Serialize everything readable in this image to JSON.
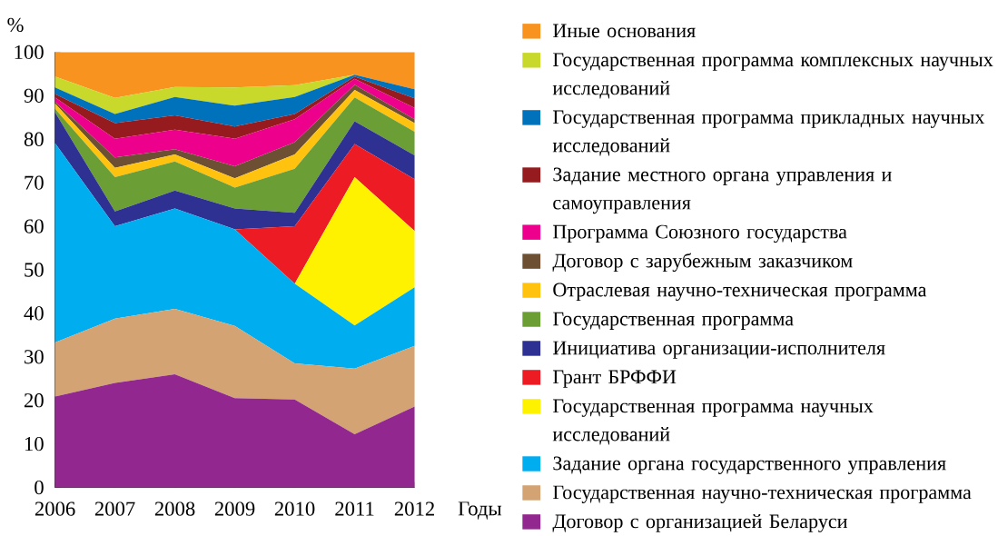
{
  "chart_data": {
    "type": "area",
    "stacked": true,
    "ylabel": "%",
    "xlabel": "Годы",
    "x": [
      2006,
      2007,
      2008,
      2009,
      2010,
      2011,
      2012
    ],
    "xlim": [
      2006,
      2012
    ],
    "xticks": [
      2006,
      2007,
      2008,
      2009,
      2010,
      2011,
      2012
    ],
    "ylim": [
      0,
      100
    ],
    "yticks": [
      0,
      10,
      20,
      30,
      40,
      50,
      60,
      70,
      80,
      90,
      100
    ],
    "legend": "right",
    "grid": false,
    "series": [
      {
        "name": "Договор с организацией Беларуси",
        "color": "#92278f",
        "values": [
          20.9,
          24.0,
          26.0,
          20.5,
          20.2,
          12.2,
          18.6
        ]
      },
      {
        "name": "Государственная научно-техническая программа",
        "color": "#d4a373",
        "values": [
          12.4,
          14.8,
          15.0,
          16.6,
          8.3,
          15.1,
          13.9
        ]
      },
      {
        "name": "Задание органа государственного управления",
        "color": "#00aeef",
        "values": [
          45.8,
          21.2,
          23.1,
          22.2,
          18.3,
          9.9,
          13.5
        ]
      },
      {
        "name": "Государственная программа научных исследований",
        "color": "#fff200",
        "values": [
          0,
          0,
          0,
          0,
          0,
          34.1,
          12.9
        ]
      },
      {
        "name": "Грант БРФФИ",
        "color": "#ed1c24",
        "values": [
          0,
          0,
          0,
          0,
          13.2,
          7.6,
          11.9
        ]
      },
      {
        "name": "Инициатива организации-исполнителя",
        "color": "#2e3192",
        "values": [
          7.1,
          3.4,
          4.1,
          4.8,
          3.1,
          5.2,
          5.5
        ]
      },
      {
        "name": "Государственная программа",
        "color": "#6b9e35",
        "values": [
          0.8,
          7.9,
          6.7,
          4.8,
          10.1,
          5.5,
          5.4
        ]
      },
      {
        "name": "Отраслевая научно-техническая программа",
        "color": "#ffc20e",
        "values": [
          1.2,
          2.1,
          1.6,
          2.1,
          3.3,
          1.7,
          2.0
        ]
      },
      {
        "name": "Договор с зарубежным заказчиком",
        "color": "#6d5033",
        "values": [
          0.4,
          2.4,
          1.2,
          2.8,
          2.8,
          1.2,
          0.9
        ]
      },
      {
        "name": "Программа Союзного государства",
        "color": "#ec008c",
        "values": [
          1.0,
          4.3,
          4.5,
          6.3,
          5.3,
          1.4,
          2.6
        ]
      },
      {
        "name": "Задание местного органа управления и самоуправления",
        "color": "#961b1e",
        "values": [
          0.8,
          3.6,
          3.3,
          2.8,
          1.2,
          0.5,
          2.2
        ]
      },
      {
        "name": "Государственная программа прикладных научных исследований",
        "color": "#0072bc",
        "values": [
          1.5,
          2.1,
          4.2,
          4.8,
          3.9,
          0.4,
          2.1
        ]
      },
      {
        "name": "Государственная программа комплексных научных исследований",
        "color": "#c8d92b",
        "values": [
          2.5,
          3.7,
          2.3,
          4.2,
          2.7,
          0,
          0
        ]
      },
      {
        "name": "Иные основания",
        "color": "#f7931e",
        "values": [
          5.6,
          10.5,
          8.0,
          8.1,
          7.6,
          5.2,
          8.5
        ]
      }
    ]
  }
}
